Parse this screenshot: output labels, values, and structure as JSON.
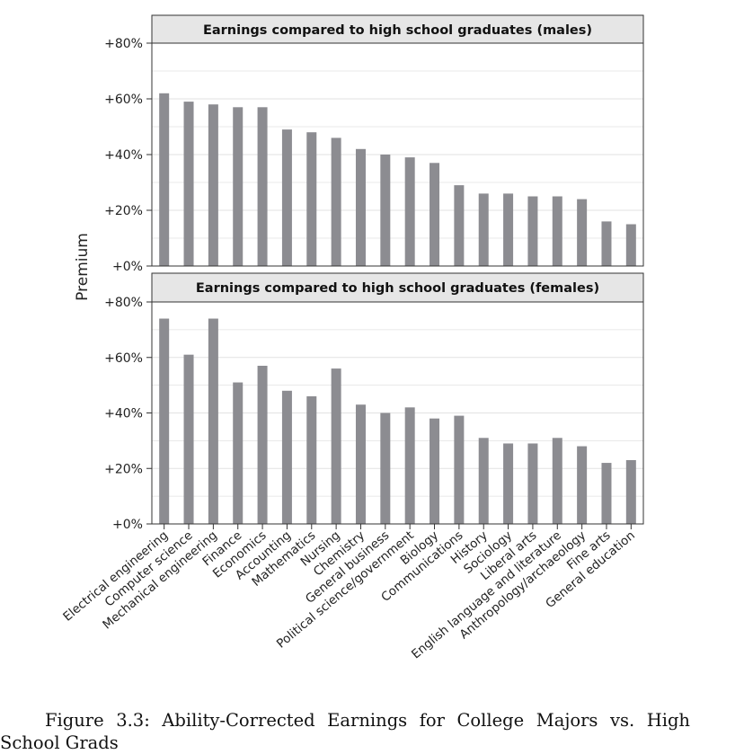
{
  "chart_data": {
    "type": "bar",
    "ylabel": "Premium",
    "ylim": [
      0,
      80
    ],
    "yticks": [
      0,
      20,
      40,
      60,
      80
    ],
    "ytick_labels": [
      "+0%",
      "+20%",
      "+40%",
      "+60%",
      "+80%"
    ],
    "categories": [
      "Electrical engineering",
      "Computer science",
      "Mechanical engineering",
      "Finance",
      "Economics",
      "Accounting",
      "Mathematics",
      "Nursing",
      "Chemistry",
      "General business",
      "Political science/government",
      "Biology",
      "Communications",
      "History",
      "Sociology",
      "Liberal arts",
      "English language and literature",
      "Anthropology/archaeology",
      "Fine arts",
      "General education"
    ],
    "series": [
      {
        "name": "males",
        "title": "Earnings compared to high school graduates (males)",
        "values": [
          62,
          59,
          58,
          57,
          57,
          49,
          48,
          46,
          42,
          40,
          39,
          37,
          29,
          26,
          26,
          25,
          25,
          24,
          16,
          15
        ]
      },
      {
        "name": "females",
        "title": "Earnings compared to high school graduates (females)",
        "values": [
          74,
          61,
          74,
          51,
          57,
          48,
          46,
          56,
          43,
          40,
          42,
          38,
          39,
          31,
          29,
          29,
          31,
          28,
          22,
          23
        ]
      }
    ]
  },
  "caption": "Figure 3.3: Ability-Corrected Earnings for College Majors vs. High School Grads",
  "colors": {
    "bar": "#8c8c91",
    "header": "#e6e6e6",
    "grid": "#e2e2e2"
  }
}
